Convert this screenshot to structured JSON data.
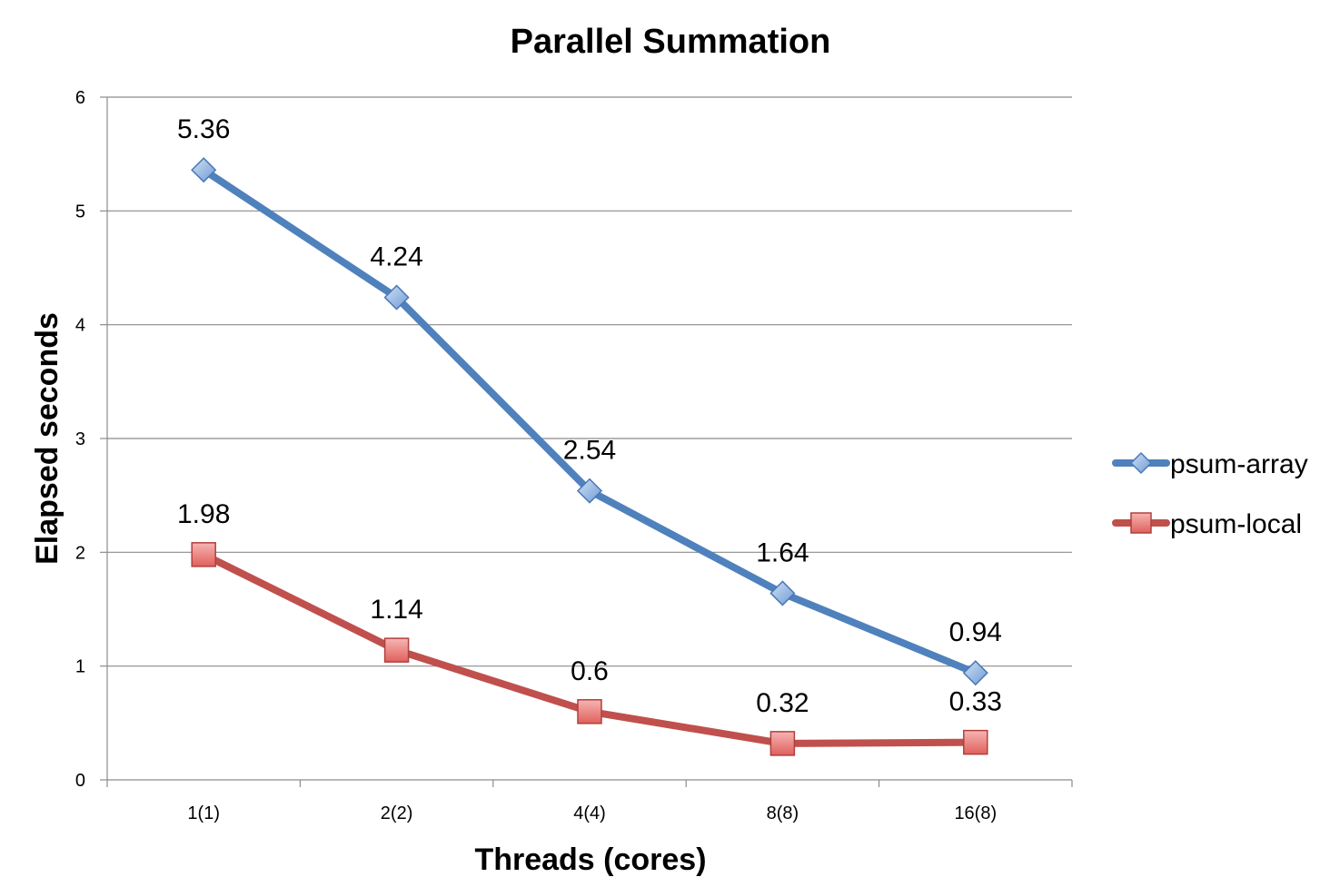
{
  "chart_data": {
    "type": "line",
    "title": "Parallel Summation",
    "xlabel": "Threads (cores)",
    "ylabel": "Elapsed seconds",
    "categories": [
      "1(1)",
      "2(2)",
      "4(4)",
      "8(8)",
      "16(8)"
    ],
    "ylim": [
      0,
      6
    ],
    "yticks": [
      0,
      1,
      2,
      3,
      4,
      5,
      6
    ],
    "grid": true,
    "legend_position": "right",
    "series": [
      {
        "name": "psum-array",
        "values": [
          5.36,
          4.24,
          2.54,
          1.64,
          0.94
        ],
        "labels": [
          "5.36",
          "4.24",
          "2.54",
          "1.64",
          "0.94"
        ],
        "color": "#4f81bd",
        "marker": "diamond"
      },
      {
        "name": "psum-local",
        "values": [
          1.98,
          1.14,
          0.6,
          0.32,
          0.33
        ],
        "labels": [
          "1.98",
          "1.14",
          "0.6",
          "0.32",
          "0.33"
        ],
        "color": "#c0504d",
        "marker": "square"
      }
    ]
  }
}
